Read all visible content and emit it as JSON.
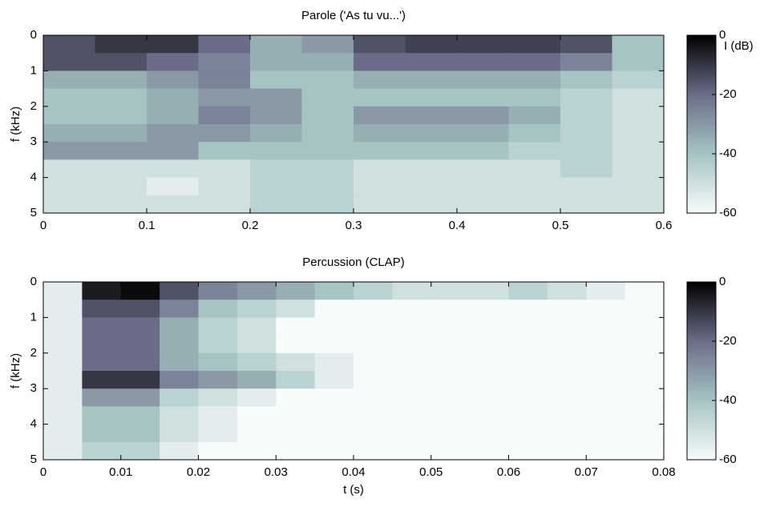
{
  "chart_data": [
    {
      "type": "heatmap",
      "title": "Parole ('As tu vu...')",
      "ylabel": "f (kHz)",
      "colorbar_label": "I (dB)",
      "x": [
        0.025,
        0.075,
        0.125,
        0.175,
        0.225,
        0.275,
        0.325,
        0.375,
        0.425,
        0.475,
        0.525,
        0.575
      ],
      "y": [
        0.25,
        0.75,
        1.25,
        1.75,
        2.25,
        2.75,
        3.25,
        3.75,
        4.25,
        4.75
      ],
      "z": [
        [
          -15,
          -10,
          -10,
          -20,
          -35,
          -30,
          -15,
          -12,
          -12,
          -12,
          -15,
          -40
        ],
        [
          -15,
          -15,
          -20,
          -25,
          -35,
          -35,
          -20,
          -20,
          -20,
          -20,
          -25,
          -40
        ],
        [
          -35,
          -35,
          -30,
          -25,
          -40,
          -40,
          -35,
          -35,
          -35,
          -35,
          -40,
          -45
        ],
        [
          -40,
          -40,
          -35,
          -30,
          -30,
          -40,
          -40,
          -40,
          -40,
          -40,
          -45,
          -50
        ],
        [
          -40,
          -40,
          -35,
          -25,
          -30,
          -40,
          -30,
          -30,
          -30,
          -35,
          -45,
          -50
        ],
        [
          -35,
          -35,
          -30,
          -30,
          -35,
          -40,
          -35,
          -35,
          -35,
          -40,
          -45,
          -50
        ],
        [
          -30,
          -30,
          -30,
          -40,
          -40,
          -40,
          -40,
          -40,
          -40,
          -45,
          -45,
          -50
        ],
        [
          -50,
          -50,
          -50,
          -50,
          -45,
          -45,
          -50,
          -50,
          -50,
          -50,
          -45,
          -50
        ],
        [
          -50,
          -50,
          -55,
          -50,
          -45,
          -45,
          -50,
          -50,
          -50,
          -50,
          -50,
          -50
        ],
        [
          -50,
          -50,
          -50,
          -50,
          -45,
          -45,
          -50,
          -50,
          -50,
          -50,
          -50,
          -50
        ]
      ],
      "xlim": [
        0,
        0.6
      ],
      "xticks": [
        0,
        0.1,
        0.2,
        0.3,
        0.4,
        0.5,
        0.6
      ],
      "ylim": [
        5,
        0
      ],
      "yticks": [
        0,
        1,
        2,
        3,
        4,
        5
      ],
      "clim": [
        -60,
        0
      ],
      "cticks": [
        0,
        -20,
        -40,
        -60
      ],
      "colormap": [
        "#f7fbfb",
        "#a6c4c4",
        "#6b6d88",
        "#000000"
      ]
    },
    {
      "type": "heatmap",
      "title": "Percussion (CLAP)",
      "ylabel": "f (kHz)",
      "xlabel": "t (s)",
      "x": [
        0.0025,
        0.0075,
        0.0125,
        0.0175,
        0.0225,
        0.0275,
        0.0325,
        0.0375,
        0.0425,
        0.0475,
        0.0525,
        0.0575,
        0.0625,
        0.0675,
        0.0725,
        0.0775
      ],
      "y": [
        0.25,
        0.75,
        1.25,
        1.75,
        2.25,
        2.75,
        3.25,
        3.75,
        4.25,
        4.75
      ],
      "z": [
        [
          -55,
          -5,
          -2,
          -15,
          -25,
          -30,
          -35,
          -40,
          -45,
          -50,
          -50,
          -50,
          -45,
          -50,
          -55,
          -60
        ],
        [
          -55,
          -15,
          -15,
          -25,
          -40,
          -45,
          -50,
          -60,
          -60,
          -60,
          -60,
          -60,
          -60,
          -60,
          -60,
          -60
        ],
        [
          -55,
          -20,
          -20,
          -35,
          -45,
          -50,
          -60,
          -60,
          -60,
          -60,
          -60,
          -60,
          -60,
          -60,
          -60,
          -60
        ],
        [
          -55,
          -20,
          -20,
          -35,
          -45,
          -50,
          -60,
          -60,
          -60,
          -60,
          -60,
          -60,
          -60,
          -60,
          -60,
          -60
        ],
        [
          -55,
          -20,
          -20,
          -35,
          -40,
          -45,
          -50,
          -55,
          -60,
          -60,
          -60,
          -60,
          -60,
          -60,
          -60,
          -60
        ],
        [
          -55,
          -10,
          -10,
          -25,
          -30,
          -35,
          -45,
          -55,
          -60,
          -60,
          -60,
          -60,
          -60,
          -60,
          -60,
          -60
        ],
        [
          -55,
          -30,
          -30,
          -45,
          -50,
          -55,
          -60,
          -60,
          -60,
          -60,
          -60,
          -60,
          -60,
          -60,
          -60,
          -60
        ],
        [
          -55,
          -40,
          -40,
          -50,
          -55,
          -60,
          -60,
          -60,
          -60,
          -60,
          -60,
          -60,
          -60,
          -60,
          -60,
          -60
        ],
        [
          -55,
          -40,
          -40,
          -50,
          -55,
          -60,
          -60,
          -60,
          -60,
          -60,
          -60,
          -60,
          -60,
          -60,
          -60,
          -60
        ],
        [
          -55,
          -45,
          -45,
          -55,
          -60,
          -60,
          -60,
          -60,
          -60,
          -60,
          -60,
          -60,
          -60,
          -60,
          -60,
          -60
        ]
      ],
      "xlim": [
        0,
        0.08
      ],
      "xticks": [
        0,
        0.01,
        0.02,
        0.03,
        0.04,
        0.05,
        0.06,
        0.07,
        0.08
      ],
      "ylim": [
        5,
        0
      ],
      "yticks": [
        0,
        1,
        2,
        3,
        4,
        5
      ],
      "clim": [
        -60,
        0
      ],
      "cticks": [
        0,
        -20,
        -40,
        -60
      ],
      "colormap": [
        "#f7fbfb",
        "#a6c4c4",
        "#6b6d88",
        "#000000"
      ]
    }
  ]
}
